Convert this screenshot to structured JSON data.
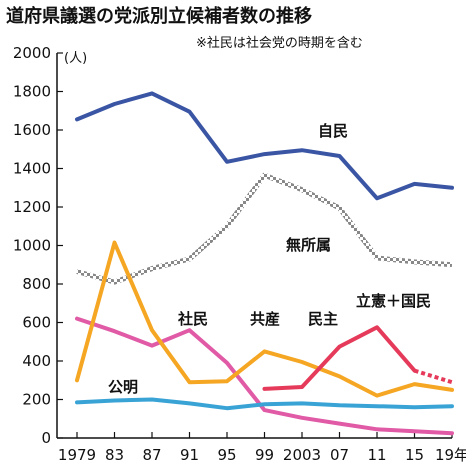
{
  "chart_data": {
    "type": "line",
    "title": "道府県議選の党派別立候補者数の推移",
    "note": "※社民は社会党の時期を含む",
    "ylabel": "(人)",
    "ylim": [
      0,
      2000
    ],
    "yticks": [
      0,
      200,
      400,
      600,
      800,
      1000,
      1200,
      1400,
      1600,
      1800,
      2000
    ],
    "grid": false,
    "x": [
      1979,
      1983,
      1987,
      1991,
      1995,
      1999,
      2003,
      2007,
      2011,
      2015,
      2019
    ],
    "xtick_labels": [
      "1979",
      "83",
      "87",
      "91",
      "95",
      "99",
      "2003",
      "07",
      "11",
      "15",
      "19年"
    ],
    "series": [
      {
        "name": "自民",
        "color": "#3a55a4",
        "style": "solid",
        "values": [
          1655,
          1735,
          1790,
          1695,
          1435,
          1475,
          1495,
          1465,
          1245,
          1320,
          1300
        ]
      },
      {
        "name": "無所属",
        "color": "#888888",
        "style": "checker",
        "values": [
          865,
          810,
          880,
          930,
          1100,
          1365,
          1290,
          1195,
          935,
          915,
          900
        ]
      },
      {
        "name": "社民",
        "color": "#e05aa6",
        "style": "solid",
        "values": [
          620,
          555,
          480,
          560,
          390,
          145,
          105,
          75,
          45,
          35,
          25
        ]
      },
      {
        "name": "共産",
        "color": "#f5a623",
        "style": "solid",
        "values": [
          300,
          1015,
          560,
          290,
          295,
          450,
          395,
          320,
          220,
          280,
          250
        ]
      },
      {
        "name": "公明",
        "color": "#3aa3d6",
        "style": "solid",
        "values": [
          185,
          195,
          200,
          180,
          155,
          175,
          180,
          170,
          165,
          160,
          165
        ]
      },
      {
        "name": "民主",
        "color": "#e53a5a",
        "style": "solid",
        "values": [
          null,
          null,
          null,
          null,
          null,
          255,
          265,
          475,
          575,
          350,
          null
        ]
      },
      {
        "name": "立憲＋国民",
        "color": "#e53a5a",
        "style": "dotted",
        "values": [
          null,
          null,
          null,
          null,
          null,
          null,
          null,
          null,
          null,
          350,
          290
        ]
      }
    ]
  }
}
